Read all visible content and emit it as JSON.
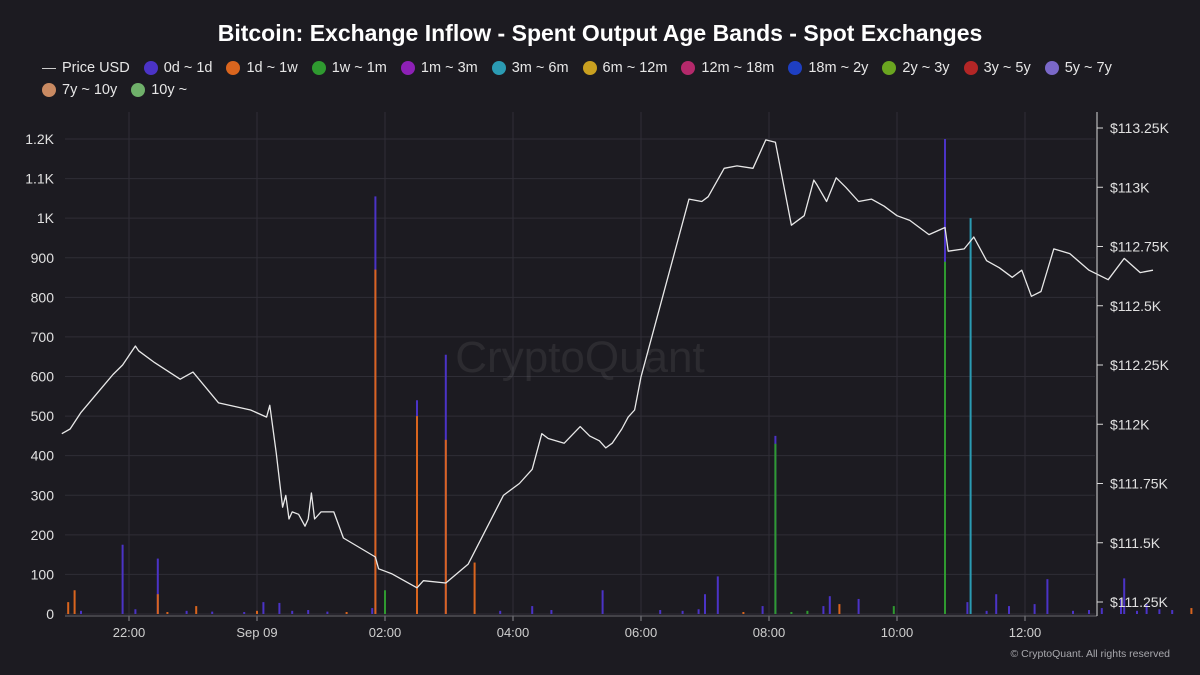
{
  "chart_data": {
    "type": "bar+line",
    "title": "Bitcoin: Exchange Inflow - Spent Output Age Bands - Spot Exchanges",
    "watermark": "CryptoQuant",
    "copyright": "© CryptoQuant. All rights reserved",
    "legend": [
      {
        "name": "Price USD",
        "kind": "line",
        "color": "#cccccc"
      },
      {
        "name": "0d ~ 1d",
        "kind": "dot",
        "color": "#4b33c6"
      },
      {
        "name": "1d ~ 1w",
        "kind": "dot",
        "color": "#d9651e"
      },
      {
        "name": "1w ~ 1m",
        "kind": "dot",
        "color": "#2f9a30"
      },
      {
        "name": "1m ~ 3m",
        "kind": "dot",
        "color": "#8d20b6"
      },
      {
        "name": "3m ~ 6m",
        "kind": "dot",
        "color": "#2b9bb3"
      },
      {
        "name": "6m ~ 12m",
        "kind": "dot",
        "color": "#c9a020"
      },
      {
        "name": "12m ~ 18m",
        "kind": "dot",
        "color": "#b4296b"
      },
      {
        "name": "18m ~ 2y",
        "kind": "dot",
        "color": "#1e3fc2"
      },
      {
        "name": "2y ~ 3y",
        "kind": "dot",
        "color": "#6aa520"
      },
      {
        "name": "3y ~ 5y",
        "kind": "dot",
        "color": "#b32626"
      },
      {
        "name": "5y ~ 7y",
        "kind": "dot",
        "color": "#7a68c8"
      },
      {
        "name": "7y ~ 10y",
        "kind": "dot",
        "color": "#c98a62"
      },
      {
        "name": "10y ~",
        "kind": "dot",
        "color": "#6fb06a"
      }
    ],
    "x_axis": {
      "type": "time",
      "range_hours": [
        20.9,
        13.1
      ],
      "ticks": [
        {
          "label": "22:00",
          "h": 22
        },
        {
          "label": "Sep 09",
          "h": 24
        },
        {
          "label": "02:00",
          "h": 26
        },
        {
          "label": "04:00",
          "h": 28
        },
        {
          "label": "06:00",
          "h": 30
        },
        {
          "label": "08:00",
          "h": 32
        },
        {
          "label": "10:00",
          "h": 34
        },
        {
          "label": "12:00",
          "h": 36
        }
      ]
    },
    "y_left": {
      "ylim": [
        0,
        1200
      ],
      "ticks": [
        {
          "v": 0,
          "label": "0"
        },
        {
          "v": 100,
          "label": "100"
        },
        {
          "v": 200,
          "label": "200"
        },
        {
          "v": 300,
          "label": "300"
        },
        {
          "v": 400,
          "label": "400"
        },
        {
          "v": 500,
          "label": "500"
        },
        {
          "v": 600,
          "label": "600"
        },
        {
          "v": 700,
          "label": "700"
        },
        {
          "v": 800,
          "label": "800"
        },
        {
          "v": 900,
          "label": "900"
        },
        {
          "v": 1000,
          "label": "1K"
        },
        {
          "v": 1100,
          "label": "1.1K"
        },
        {
          "v": 1200,
          "label": "1.2K"
        }
      ]
    },
    "y_right": {
      "ylim": [
        111200,
        113270
      ],
      "ticks": [
        {
          "v": 111250,
          "label": "$111.25K"
        },
        {
          "v": 111500,
          "label": "$111.5K"
        },
        {
          "v": 111750,
          "label": "$111.75K"
        },
        {
          "v": 112000,
          "label": "$112K"
        },
        {
          "v": 112250,
          "label": "$112.25K"
        },
        {
          "v": 112500,
          "label": "$112.5K"
        },
        {
          "v": 112750,
          "label": "$112.75K"
        },
        {
          "v": 113000,
          "label": "$113K"
        },
        {
          "v": 113250,
          "label": "$113.25K"
        }
      ]
    },
    "bars": [
      {
        "x": 21.05,
        "band": "1d ~ 1w",
        "value": 30
      },
      {
        "x": 21.15,
        "band": "1d ~ 1w",
        "value": 60
      },
      {
        "x": 21.25,
        "band": "0d ~ 1d",
        "value": 8
      },
      {
        "x": 21.9,
        "band": "0d ~ 1d",
        "value": 175
      },
      {
        "x": 22.1,
        "band": "0d ~ 1d",
        "value": 12
      },
      {
        "x": 22.45,
        "band": "0d ~ 1d",
        "value": 140
      },
      {
        "x": 22.45,
        "band": "1d ~ 1w",
        "value": 50
      },
      {
        "x": 22.6,
        "band": "1d ~ 1w",
        "value": 5
      },
      {
        "x": 22.9,
        "band": "0d ~ 1d",
        "value": 8
      },
      {
        "x": 23.05,
        "band": "1d ~ 1w",
        "value": 20
      },
      {
        "x": 23.3,
        "band": "0d ~ 1d",
        "value": 6
      },
      {
        "x": 23.8,
        "band": "0d ~ 1d",
        "value": 5
      },
      {
        "x": 24.0,
        "band": "1d ~ 1w",
        "value": 8
      },
      {
        "x": 24.1,
        "band": "0d ~ 1d",
        "value": 30
      },
      {
        "x": 24.35,
        "band": "0d ~ 1d",
        "value": 28
      },
      {
        "x": 24.55,
        "band": "0d ~ 1d",
        "value": 8
      },
      {
        "x": 24.8,
        "band": "0d ~ 1d",
        "value": 10
      },
      {
        "x": 25.1,
        "band": "0d ~ 1d",
        "value": 6
      },
      {
        "x": 25.4,
        "band": "1d ~ 1w",
        "value": 5
      },
      {
        "x": 25.8,
        "band": "0d ~ 1d",
        "value": 15
      },
      {
        "x": 25.85,
        "band": "0d ~ 1d",
        "value": 1055
      },
      {
        "x": 25.85,
        "band": "1d ~ 1w",
        "value": 870
      },
      {
        "x": 26.0,
        "band": "1w ~ 1m",
        "value": 60
      },
      {
        "x": 26.5,
        "band": "0d ~ 1d",
        "value": 540
      },
      {
        "x": 26.5,
        "band": "1d ~ 1w",
        "value": 500
      },
      {
        "x": 26.95,
        "band": "0d ~ 1d",
        "value": 655
      },
      {
        "x": 26.95,
        "band": "1d ~ 1w",
        "value": 440
      },
      {
        "x": 27.4,
        "band": "1d ~ 1w",
        "value": 130
      },
      {
        "x": 27.8,
        "band": "0d ~ 1d",
        "value": 8
      },
      {
        "x": 28.3,
        "band": "0d ~ 1d",
        "value": 20
      },
      {
        "x": 28.6,
        "band": "0d ~ 1d",
        "value": 10
      },
      {
        "x": 29.4,
        "band": "0d ~ 1d",
        "value": 60
      },
      {
        "x": 30.3,
        "band": "0d ~ 1d",
        "value": 10
      },
      {
        "x": 30.65,
        "band": "0d ~ 1d",
        "value": 8
      },
      {
        "x": 30.9,
        "band": "0d ~ 1d",
        "value": 12
      },
      {
        "x": 31.0,
        "band": "0d ~ 1d",
        "value": 50
      },
      {
        "x": 31.2,
        "band": "0d ~ 1d",
        "value": 95
      },
      {
        "x": 31.6,
        "band": "1d ~ 1w",
        "value": 5
      },
      {
        "x": 31.9,
        "band": "0d ~ 1d",
        "value": 20
      },
      {
        "x": 32.1,
        "band": "0d ~ 1d",
        "value": 450
      },
      {
        "x": 32.1,
        "band": "1w ~ 1m",
        "value": 430
      },
      {
        "x": 32.35,
        "band": "1w ~ 1m",
        "value": 5
      },
      {
        "x": 32.6,
        "band": "1w ~ 1m",
        "value": 8
      },
      {
        "x": 32.85,
        "band": "0d ~ 1d",
        "value": 20
      },
      {
        "x": 32.95,
        "band": "0d ~ 1d",
        "value": 45
      },
      {
        "x": 33.1,
        "band": "1d ~ 1w",
        "value": 25
      },
      {
        "x": 33.4,
        "band": "0d ~ 1d",
        "value": 38
      },
      {
        "x": 33.95,
        "band": "1w ~ 1m",
        "value": 20
      },
      {
        "x": 34.75,
        "band": "0d ~ 1d",
        "value": 1200
      },
      {
        "x": 34.75,
        "band": "1w ~ 1m",
        "value": 890
      },
      {
        "x": 35.1,
        "band": "0d ~ 1d",
        "value": 30
      },
      {
        "x": 35.15,
        "band": "3m ~ 6m",
        "value": 1000
      },
      {
        "x": 35.4,
        "band": "0d ~ 1d",
        "value": 8
      },
      {
        "x": 35.55,
        "band": "0d ~ 1d",
        "value": 50
      },
      {
        "x": 35.75,
        "band": "0d ~ 1d",
        "value": 20
      },
      {
        "x": 36.15,
        "band": "0d ~ 1d",
        "value": 25
      },
      {
        "x": 36.35,
        "band": "0d ~ 1d",
        "value": 88
      },
      {
        "x": 36.75,
        "band": "0d ~ 1d",
        "value": 8
      },
      {
        "x": 37.0,
        "band": "0d ~ 1d",
        "value": 10
      },
      {
        "x": 37.2,
        "band": "0d ~ 1d",
        "value": 15
      },
      {
        "x": 37.5,
        "band": "0d ~ 1d",
        "value": 38
      },
      {
        "x": 37.55,
        "band": "0d ~ 1d",
        "value": 90
      },
      {
        "x": 37.75,
        "band": "0d ~ 1d",
        "value": 8
      },
      {
        "x": 37.9,
        "band": "0d ~ 1d",
        "value": 25
      },
      {
        "x": 38.1,
        "band": "0d ~ 1d",
        "value": 12
      },
      {
        "x": 38.3,
        "band": "0d ~ 1d",
        "value": 10
      },
      {
        "x": 38.6,
        "band": "1d ~ 1w",
        "value": 15
      },
      {
        "x": 38.9,
        "band": "0d ~ 1d",
        "value": 8
      },
      {
        "x": 39.2,
        "band": "1d ~ 1w",
        "value": 5
      },
      {
        "x": 39.5,
        "band": "0d ~ 1d",
        "value": 12
      },
      {
        "x": 40.0,
        "band": "0d ~ 1d",
        "value": 5
      }
    ],
    "price_series": [
      {
        "x": 20.95,
        "y": 111960
      },
      {
        "x": 21.08,
        "y": 111980
      },
      {
        "x": 21.25,
        "y": 112050
      },
      {
        "x": 21.5,
        "y": 112130
      },
      {
        "x": 21.75,
        "y": 112210
      },
      {
        "x": 21.9,
        "y": 112250
      },
      {
        "x": 22.1,
        "y": 112330
      },
      {
        "x": 22.15,
        "y": 112310
      },
      {
        "x": 22.4,
        "y": 112260
      },
      {
        "x": 22.8,
        "y": 112190
      },
      {
        "x": 23.0,
        "y": 112220
      },
      {
        "x": 23.4,
        "y": 112090
      },
      {
        "x": 23.9,
        "y": 112060
      },
      {
        "x": 24.15,
        "y": 112030
      },
      {
        "x": 24.2,
        "y": 112080
      },
      {
        "x": 24.3,
        "y": 111880
      },
      {
        "x": 24.4,
        "y": 111650
      },
      {
        "x": 24.45,
        "y": 111700
      },
      {
        "x": 24.5,
        "y": 111600
      },
      {
        "x": 24.55,
        "y": 111630
      },
      {
        "x": 24.65,
        "y": 111620
      },
      {
        "x": 24.75,
        "y": 111570
      },
      {
        "x": 24.8,
        "y": 111600
      },
      {
        "x": 24.85,
        "y": 111710
      },
      {
        "x": 24.9,
        "y": 111600
      },
      {
        "x": 25.0,
        "y": 111630
      },
      {
        "x": 25.2,
        "y": 111630
      },
      {
        "x": 25.35,
        "y": 111520
      },
      {
        "x": 25.85,
        "y": 111440
      },
      {
        "x": 25.9,
        "y": 111390
      },
      {
        "x": 26.0,
        "y": 111380
      },
      {
        "x": 26.1,
        "y": 111370
      },
      {
        "x": 26.5,
        "y": 111310
      },
      {
        "x": 26.6,
        "y": 111340
      },
      {
        "x": 26.95,
        "y": 111330
      },
      {
        "x": 27.3,
        "y": 111410
      },
      {
        "x": 27.85,
        "y": 111700
      },
      {
        "x": 28.1,
        "y": 111750
      },
      {
        "x": 28.3,
        "y": 111810
      },
      {
        "x": 28.45,
        "y": 111960
      },
      {
        "x": 28.55,
        "y": 111940
      },
      {
        "x": 28.8,
        "y": 111920
      },
      {
        "x": 29.05,
        "y": 111990
      },
      {
        "x": 29.2,
        "y": 111950
      },
      {
        "x": 29.35,
        "y": 111930
      },
      {
        "x": 29.45,
        "y": 111900
      },
      {
        "x": 29.55,
        "y": 111920
      },
      {
        "x": 29.7,
        "y": 111980
      },
      {
        "x": 29.8,
        "y": 112030
      },
      {
        "x": 29.9,
        "y": 112060
      },
      {
        "x": 30.0,
        "y": 112200
      },
      {
        "x": 30.35,
        "y": 112550
      },
      {
        "x": 30.75,
        "y": 112950
      },
      {
        "x": 30.95,
        "y": 112940
      },
      {
        "x": 31.05,
        "y": 112960
      },
      {
        "x": 31.3,
        "y": 113080
      },
      {
        "x": 31.5,
        "y": 113090
      },
      {
        "x": 31.75,
        "y": 113080
      },
      {
        "x": 31.95,
        "y": 113200
      },
      {
        "x": 32.1,
        "y": 113190
      },
      {
        "x": 32.35,
        "y": 112840
      },
      {
        "x": 32.55,
        "y": 112880
      },
      {
        "x": 32.7,
        "y": 113030
      },
      {
        "x": 32.75,
        "y": 113010
      },
      {
        "x": 32.9,
        "y": 112940
      },
      {
        "x": 33.05,
        "y": 113040
      },
      {
        "x": 33.2,
        "y": 113000
      },
      {
        "x": 33.4,
        "y": 112940
      },
      {
        "x": 33.6,
        "y": 112950
      },
      {
        "x": 33.8,
        "y": 112920
      },
      {
        "x": 34.0,
        "y": 112880
      },
      {
        "x": 34.2,
        "y": 112860
      },
      {
        "x": 34.5,
        "y": 112800
      },
      {
        "x": 34.75,
        "y": 112830
      },
      {
        "x": 34.8,
        "y": 112730
      },
      {
        "x": 35.05,
        "y": 112740
      },
      {
        "x": 35.2,
        "y": 112790
      },
      {
        "x": 35.4,
        "y": 112690
      },
      {
        "x": 35.6,
        "y": 112660
      },
      {
        "x": 35.8,
        "y": 112620
      },
      {
        "x": 35.95,
        "y": 112650
      },
      {
        "x": 36.1,
        "y": 112540
      },
      {
        "x": 36.25,
        "y": 112560
      },
      {
        "x": 36.45,
        "y": 112740
      },
      {
        "x": 36.7,
        "y": 112720
      },
      {
        "x": 37.0,
        "y": 112650
      },
      {
        "x": 37.3,
        "y": 112610
      },
      {
        "x": 37.55,
        "y": 112700
      },
      {
        "x": 37.8,
        "y": 112640
      },
      {
        "x": 38.0,
        "y": 112650
      }
    ]
  }
}
